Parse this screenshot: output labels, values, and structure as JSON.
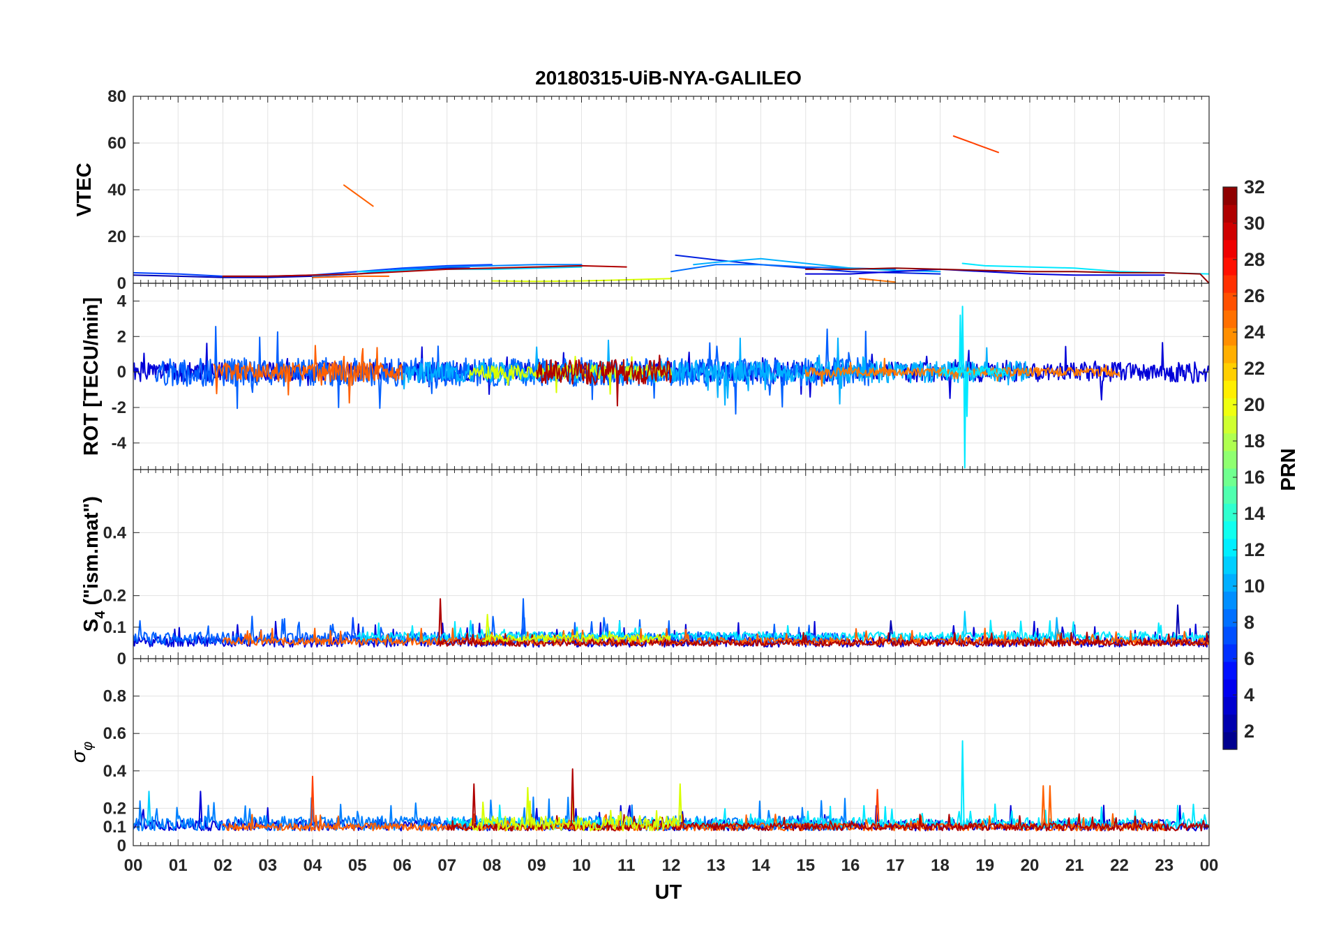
{
  "chart_data": {
    "type": "line",
    "title": "20180315-UiB-NYA-GALILEO",
    "xlabel": "UT",
    "x_ticks": [
      "00",
      "01",
      "02",
      "03",
      "04",
      "05",
      "06",
      "07",
      "08",
      "09",
      "10",
      "11",
      "12",
      "13",
      "14",
      "15",
      "16",
      "17",
      "18",
      "19",
      "20",
      "21",
      "22",
      "23",
      "00"
    ],
    "xlim": [
      0,
      24
    ],
    "colorbar": {
      "label": "PRN",
      "ticks": [
        "32",
        "30",
        "28",
        "26",
        "24",
        "22",
        "20",
        "18",
        "16",
        "14",
        "12",
        "10",
        "8",
        "6",
        "4",
        "2"
      ],
      "range": [
        1,
        32
      ],
      "colormap": "jet"
    },
    "panels": [
      {
        "id": "vtec",
        "ylabel": "VTEC",
        "ylim": [
          0,
          80
        ],
        "y_ticks": [
          "80",
          "60",
          "40",
          "20",
          "0"
        ],
        "series": [
          {
            "prn": 2,
            "color": "#0000b3",
            "points": [
              [
                0,
                3.5
              ],
              [
                1,
                3
              ],
              [
                2,
                2.5
              ],
              [
                3,
                2.5
              ],
              [
                4,
                3
              ],
              [
                5,
                4
              ],
              [
                6,
                5.5
              ],
              [
                7,
                6.5
              ],
              [
                7.5,
                6.5
              ]
            ]
          },
          {
            "prn": 5,
            "color": "#0040ff",
            "points": [
              [
                0,
                4.5
              ],
              [
                1,
                4
              ],
              [
                2,
                3
              ],
              [
                3,
                3
              ],
              [
                4,
                3.5
              ],
              [
                5,
                5
              ],
              [
                6,
                6.5
              ],
              [
                7,
                7.5
              ],
              [
                8,
                8
              ]
            ]
          },
          {
            "prn": 8,
            "color": "#0080ff",
            "points": [
              [
                4,
                3
              ],
              [
                5,
                4
              ],
              [
                6,
                6
              ],
              [
                7,
                7
              ],
              [
                8,
                7.5
              ],
              [
                9,
                8
              ],
              [
                10,
                8
              ]
            ]
          },
          {
            "prn": 12,
            "color": "#00d0ff",
            "points": [
              [
                5,
                5
              ],
              [
                6,
                5.5
              ],
              [
                7,
                6
              ],
              [
                8,
                6
              ],
              [
                9,
                6.5
              ],
              [
                10,
                7
              ]
            ]
          },
          {
            "prn": 30,
            "color": "#b00000",
            "points": [
              [
                2,
                3
              ],
              [
                3,
                3
              ],
              [
                4,
                3.5
              ],
              [
                5,
                4
              ],
              [
                6,
                5
              ],
              [
                7,
                6
              ],
              [
                8,
                6.5
              ],
              [
                9,
                7
              ],
              [
                10,
                7.5
              ],
              [
                11,
                7
              ]
            ]
          },
          {
            "prn": 25,
            "color": "#ff6000",
            "points": [
              [
                4.7,
                42
              ],
              [
                5.35,
                33
              ]
            ]
          },
          {
            "prn": 25,
            "color": "#ff6000",
            "points": [
              [
                4,
                2.5
              ],
              [
                5,
                3
              ],
              [
                5.7,
                3
              ]
            ]
          },
          {
            "prn": 19,
            "color": "#d8ff00",
            "points": [
              [
                8,
                1
              ],
              [
                9,
                0.8
              ],
              [
                10,
                1
              ],
              [
                11,
                1.5
              ],
              [
                12,
                2
              ]
            ]
          },
          {
            "prn": 4,
            "color": "#0020e0",
            "points": [
              [
                12.1,
                12
              ],
              [
                13,
                10
              ],
              [
                14,
                8
              ],
              [
                15,
                6.5
              ],
              [
                16,
                5
              ],
              [
                17,
                4.5
              ],
              [
                18,
                4
              ]
            ]
          },
          {
            "prn": 9,
            "color": "#0070ff",
            "points": [
              [
                12,
                5
              ],
              [
                13,
                8
              ],
              [
                14,
                8
              ],
              [
                15,
                7
              ],
              [
                16,
                6.5
              ],
              [
                17,
                6
              ]
            ]
          },
          {
            "prn": 11,
            "color": "#00b0ff",
            "points": [
              [
                12.5,
                8
              ],
              [
                13,
                9
              ],
              [
                14,
                10.5
              ],
              [
                15,
                8.5
              ],
              [
                16,
                6.5
              ],
              [
                17,
                5.5
              ],
              [
                18,
                5
              ]
            ]
          },
          {
            "prn": 3,
            "color": "#0000d8",
            "points": [
              [
                15,
                4
              ],
              [
                16,
                4
              ],
              [
                17,
                5
              ],
              [
                18,
                6
              ],
              [
                19,
                5
              ],
              [
                20,
                4
              ],
              [
                21,
                3.5
              ],
              [
                22,
                3.5
              ],
              [
                23,
                3.5
              ]
            ]
          },
          {
            "prn": 13,
            "color": "#00e8ff",
            "points": [
              [
                18.5,
                8.5
              ],
              [
                19,
                7.5
              ],
              [
                20,
                7
              ],
              [
                21,
                6.5
              ],
              [
                22,
                5
              ],
              [
                23,
                4.5
              ],
              [
                24,
                4
              ]
            ]
          },
          {
            "prn": 26,
            "color": "#ff4000",
            "points": [
              [
                18.3,
                63
              ],
              [
                19.3,
                56
              ]
            ]
          },
          {
            "prn": 24,
            "color": "#ff7000",
            "points": [
              [
                16.2,
                2
              ],
              [
                17,
                0.5
              ]
            ]
          },
          {
            "prn": 31,
            "color": "#900000",
            "points": [
              [
                15,
                6
              ],
              [
                16,
                6
              ],
              [
                17,
                6.5
              ],
              [
                18,
                6
              ],
              [
                19,
                5.5
              ],
              [
                20,
                5
              ],
              [
                21,
                5
              ],
              [
                22,
                4.5
              ],
              [
                23,
                4.5
              ],
              [
                23.8,
                4
              ],
              [
                24,
                0
              ]
            ]
          }
        ]
      },
      {
        "id": "rot",
        "ylabel": "ROT [TECU/min]",
        "ylim": [
          -5.5,
          5
        ],
        "y_ticks": [
          "4",
          "2",
          "0",
          "-2",
          "-4"
        ],
        "series": [
          {
            "prn": 3,
            "color": "#0000d8",
            "range": [
              0,
              24
            ],
            "amp": 0.55,
            "seed": 1
          },
          {
            "prn": 7,
            "color": "#0060ff",
            "range": [
              0.5,
              16.5
            ],
            "amp": 0.8,
            "seed": 2
          },
          {
            "prn": 11,
            "color": "#00b0ff",
            "range": [
              6,
              20
            ],
            "amp": 0.6,
            "seed": 3
          },
          {
            "prn": 19,
            "color": "#d8ff00",
            "range": [
              7.5,
              12
            ],
            "amp": 0.4,
            "seed": 4
          },
          {
            "prn": 25,
            "color": "#ff6000",
            "range": [
              1.8,
              6
            ],
            "amp": 0.55,
            "seed": 5
          },
          {
            "prn": 24,
            "color": "#ff7a00",
            "range": [
              15,
              22
            ],
            "amp": 0.25,
            "seed": 6
          },
          {
            "prn": 30,
            "color": "#b00000",
            "range": [
              9,
              12
            ],
            "amp": 0.7,
            "seed": 7
          },
          {
            "prn": 13,
            "color": "#00e8ff",
            "range": [
              18,
              19.5
            ],
            "amp": 0.3,
            "seed": 8,
            "spikes": [
              [
                18.5,
                3.7
              ],
              [
                18.55,
                -5.4
              ],
              [
                18.45,
                3.2
              ],
              [
                18.6,
                -2.5
              ]
            ]
          }
        ]
      },
      {
        "id": "s4",
        "ylabel": "S4 (\"ism.mat\")",
        "ylabel_main": "S",
        "ylabel_sub": "4",
        "ylabel_rest": " (\"ism.mat\")",
        "ylim": [
          0,
          0.6
        ],
        "y_ticks": [
          "0.4",
          "0.2",
          "0.1",
          "0"
        ],
        "series": [
          {
            "prn": 3,
            "color": "#0000d8",
            "range": [
              0,
              24
            ],
            "base": 0.055,
            "amp": 0.018,
            "seed": 11
          },
          {
            "prn": 7,
            "color": "#0060ff",
            "range": [
              0,
              16
            ],
            "base": 0.065,
            "amp": 0.02,
            "seed": 12
          },
          {
            "prn": 13,
            "color": "#00e8ff",
            "range": [
              5,
              24
            ],
            "base": 0.07,
            "amp": 0.015,
            "seed": 13
          },
          {
            "prn": 25,
            "color": "#ff6000",
            "range": [
              2,
              24
            ],
            "base": 0.055,
            "amp": 0.012,
            "seed": 14
          },
          {
            "prn": 30,
            "color": "#b00000",
            "range": [
              6.8,
              24
            ],
            "base": 0.05,
            "amp": 0.01,
            "seed": 15
          },
          {
            "prn": 19,
            "color": "#d8ff00",
            "range": [
              7.8,
              12
            ],
            "base": 0.065,
            "amp": 0.012,
            "seed": 16
          }
        ],
        "spikes": [
          {
            "color": "#0040ff",
            "x": 4.9,
            "y": 0.13
          },
          {
            "color": "#0060ff",
            "x": 8.7,
            "y": 0.19
          },
          {
            "color": "#b00000",
            "x": 6.85,
            "y": 0.19
          },
          {
            "color": "#d8ff00",
            "x": 7.9,
            "y": 0.14
          },
          {
            "color": "#00d0ff",
            "x": 18.55,
            "y": 0.15
          },
          {
            "color": "#0000b3",
            "x": 23.3,
            "y": 0.17
          },
          {
            "color": "#0000b3",
            "x": 16.9,
            "y": 0.12
          },
          {
            "color": "#00b0ff",
            "x": 20.6,
            "y": 0.13
          }
        ]
      },
      {
        "id": "sigma",
        "ylabel": "σφ",
        "ylabel_main": "σ",
        "ylabel_sub": "φ",
        "ylim": [
          0,
          1
        ],
        "y_ticks": [
          "0.8",
          "0.6",
          "0.4",
          "0.2",
          "0.1",
          "0"
        ],
        "series": [
          {
            "prn": 3,
            "color": "#0000d8",
            "range": [
              0,
              24
            ],
            "base": 0.11,
            "amp": 0.03,
            "seed": 21
          },
          {
            "prn": 8,
            "color": "#0080ff",
            "range": [
              0,
              16
            ],
            "base": 0.12,
            "amp": 0.04,
            "seed": 22
          },
          {
            "prn": 13,
            "color": "#00e8ff",
            "range": [
              7,
              24
            ],
            "base": 0.12,
            "amp": 0.03,
            "seed": 23
          },
          {
            "prn": 25,
            "color": "#ff6000",
            "range": [
              2,
              23
            ],
            "base": 0.1,
            "amp": 0.02,
            "seed": 24
          },
          {
            "prn": 30,
            "color": "#b00000",
            "range": [
              7,
              24
            ],
            "base": 0.1,
            "amp": 0.02,
            "seed": 25
          },
          {
            "prn": 19,
            "color": "#d8ff00",
            "range": [
              7.5,
              12.2
            ],
            "base": 0.12,
            "amp": 0.04,
            "seed": 26
          }
        ],
        "spikes": [
          {
            "color": "#00d0ff",
            "x": 0.35,
            "y": 0.29
          },
          {
            "color": "#0000d8",
            "x": 1.5,
            "y": 0.29
          },
          {
            "color": "#ff4000",
            "x": 4.0,
            "y": 0.37
          },
          {
            "color": "#b00000",
            "x": 7.6,
            "y": 0.33
          },
          {
            "color": "#d8ff00",
            "x": 8.8,
            "y": 0.31
          },
          {
            "color": "#b00000",
            "x": 9.8,
            "y": 0.41
          },
          {
            "color": "#d8ff00",
            "x": 12.2,
            "y": 0.33
          },
          {
            "color": "#ff4000",
            "x": 16.6,
            "y": 0.3
          },
          {
            "color": "#00e8ff",
            "x": 18.5,
            "y": 0.56
          },
          {
            "color": "#ff6000",
            "x": 20.3,
            "y": 0.32
          },
          {
            "color": "#ff6000",
            "x": 20.45,
            "y": 0.32
          }
        ]
      }
    ]
  }
}
